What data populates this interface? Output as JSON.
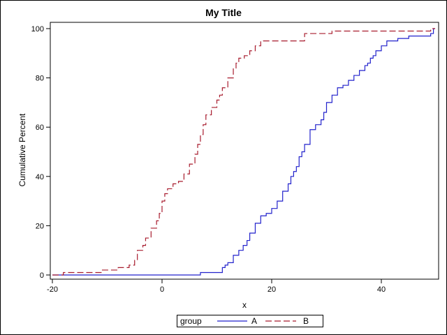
{
  "chart_data": {
    "type": "line",
    "title": "My Title",
    "xlabel": "x",
    "ylabel": "Cumulative Percent",
    "xlim": [
      -20,
      50
    ],
    "ylim": [
      0,
      100
    ],
    "xticks": [
      -20,
      0,
      20,
      40
    ],
    "yticks": [
      0,
      20,
      40,
      60,
      80,
      100
    ],
    "legend": {
      "title": "group",
      "position": "bottom",
      "entries": [
        "A",
        "B"
      ]
    },
    "series": [
      {
        "name": "A",
        "style": "solid step",
        "color": "#2222CC",
        "x": [
          -20,
          7,
          11,
          11.5,
          12,
          13,
          14,
          14.8,
          15.5,
          16,
          17,
          18,
          19,
          20,
          21,
          22,
          23,
          23.5,
          24,
          24.5,
          25,
          25.5,
          26,
          27,
          28,
          29,
          29.5,
          30,
          31,
          32,
          33,
          34,
          35,
          36,
          37,
          37.5,
          38,
          38.5,
          39,
          40,
          41,
          43,
          45,
          49,
          49.5
        ],
        "y": [
          0,
          1,
          3,
          4,
          5,
          8,
          10,
          12,
          14,
          17,
          21,
          24,
          25,
          27,
          30,
          34,
          37,
          40,
          42,
          44,
          48,
          50,
          53,
          59,
          61,
          63,
          66,
          70,
          73,
          76,
          77,
          79,
          81,
          83,
          85,
          86,
          88,
          89,
          91,
          93,
          95,
          96,
          97,
          98,
          100
        ]
      },
      {
        "name": "B",
        "style": "dashed step",
        "color": "#A81C2E",
        "x": [
          -20,
          -18,
          -11,
          -8,
          -6,
          -5,
          -4.5,
          -3.5,
          -3,
          -2,
          -1,
          -0.5,
          0,
          0.5,
          1,
          2,
          3,
          4,
          5,
          6,
          6.5,
          7,
          7.5,
          8,
          9,
          10,
          10.5,
          11,
          12,
          13,
          13.5,
          14,
          15,
          16,
          17,
          18,
          26,
          31,
          49
        ],
        "y": [
          0,
          1,
          2,
          3,
          4,
          6,
          10,
          12,
          15,
          19,
          22,
          25,
          30,
          33,
          35,
          37,
          38,
          41,
          45,
          49,
          53,
          57,
          61,
          65,
          68,
          71,
          73,
          76,
          80,
          84,
          86,
          88,
          89,
          91,
          93,
          95,
          98,
          99,
          100
        ]
      }
    ]
  },
  "title": "My Title",
  "xlabel": "x",
  "ylabel": "Cumulative Percent",
  "yticks": [
    "0",
    "20",
    "40",
    "60",
    "80",
    "100"
  ],
  "xticks": [
    "-20",
    "0",
    "20",
    "40"
  ],
  "legend": {
    "title": "group",
    "a": "A",
    "b": "B"
  }
}
